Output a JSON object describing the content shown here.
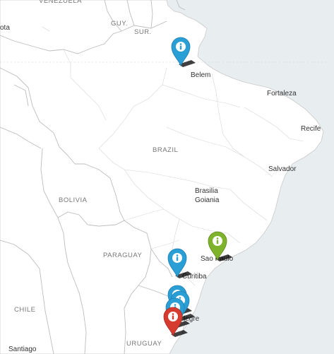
{
  "map": {
    "country_labels": [
      {
        "key": "venezuela",
        "text": "VENEZUELA"
      },
      {
        "key": "guy",
        "text": "GUY."
      },
      {
        "key": "sur",
        "text": "SUR."
      },
      {
        "key": "brazil",
        "text": "BRAZIL"
      },
      {
        "key": "bolivia",
        "text": "BOLIVIA"
      },
      {
        "key": "paraguay",
        "text": "PARAGUAY"
      },
      {
        "key": "chile",
        "text": "CHILE"
      },
      {
        "key": "uruguay",
        "text": "URUGUAY"
      }
    ],
    "city_labels": [
      {
        "key": "bota",
        "text": "ota"
      },
      {
        "key": "belem",
        "text": "Belem"
      },
      {
        "key": "fortaleza",
        "text": "Fortaleza"
      },
      {
        "key": "recife",
        "text": "Recife"
      },
      {
        "key": "salvador",
        "text": "Salvador"
      },
      {
        "key": "brasilia",
        "text": "Brasilia"
      },
      {
        "key": "goiania",
        "text": "Goiania"
      },
      {
        "key": "saopaulo",
        "text": "Sao Paulo"
      },
      {
        "key": "curitiba",
        "text": "Curitiba"
      },
      {
        "key": "portoalegre",
        "text": "legre"
      },
      {
        "key": "santiago",
        "text": "Santiago"
      }
    ],
    "marker_icon": "info-icon",
    "colors": {
      "blue_marker": "#2a9fd6",
      "green_marker": "#7fb32b",
      "red_marker": "#d63b2f",
      "land": "#ffffff",
      "sea": "#e8eef0",
      "border": "#bdbdbd"
    },
    "markers": [
      {
        "key": "belem",
        "color": "blue"
      },
      {
        "key": "curitiba",
        "color": "blue"
      },
      {
        "key": "saopaulo",
        "color": "green"
      },
      {
        "key": "south-1",
        "color": "blue"
      },
      {
        "key": "south-2",
        "color": "blue"
      },
      {
        "key": "south-3",
        "color": "blue"
      },
      {
        "key": "portoalegre",
        "color": "red"
      }
    ]
  }
}
